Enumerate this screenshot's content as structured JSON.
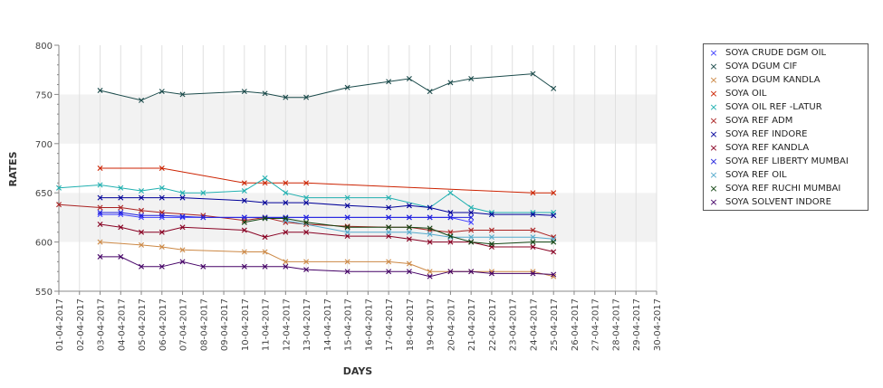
{
  "chart_data": {
    "type": "line",
    "title": "",
    "xlabel": "DAYS",
    "ylabel": "RATES",
    "ylim": [
      550,
      800
    ],
    "yticks": [
      550,
      600,
      650,
      700,
      750,
      800
    ],
    "grid": true,
    "legend_position": "right",
    "x": [
      "01-04-2017",
      "02-04-2017",
      "03-04-2017",
      "04-04-2017",
      "05-04-2017",
      "06-04-2017",
      "07-04-2017",
      "08-04-2017",
      "09-04-2017",
      "10-04-2017",
      "11-04-2017",
      "12-04-2017",
      "13-04-2017",
      "14-04-2017",
      "15-04-2017",
      "16-04-2017",
      "17-04-2017",
      "18-04-2017",
      "19-04-2017",
      "20-04-2017",
      "21-04-2017",
      "22-04-2017",
      "23-04-2017",
      "24-04-2017",
      "25-04-2017",
      "26-04-2017",
      "27-04-2017",
      "28-04-2017",
      "29-04-2017",
      "30-04-2017"
    ],
    "series": [
      {
        "name": "SOYA CRUDE DGM OIL",
        "color": "#4040ff",
        "points": [
          [
            "03-04-2017",
            628
          ],
          [
            "04-04-2017",
            628
          ],
          [
            "05-04-2017",
            625
          ],
          [
            "06-04-2017",
            625
          ],
          [
            "07-04-2017",
            625
          ],
          [
            "08-04-2017",
            625
          ],
          [
            "10-04-2017",
            625
          ],
          [
            "11-04-2017",
            625
          ],
          [
            "12-04-2017",
            625
          ],
          [
            "13-04-2017",
            625
          ],
          [
            "15-04-2017",
            625
          ],
          [
            "17-04-2017",
            625
          ],
          [
            "18-04-2017",
            625
          ],
          [
            "19-04-2017",
            625
          ],
          [
            "20-04-2017",
            625
          ],
          [
            "21-04-2017",
            620
          ]
        ]
      },
      {
        "name": "SOYA DGUM CIF",
        "color": "#1a4a4a",
        "points": [
          [
            "03-04-2017",
            754
          ],
          [
            "05-04-2017",
            744
          ],
          [
            "06-04-2017",
            753
          ],
          [
            "07-04-2017",
            750
          ],
          [
            "10-04-2017",
            753
          ],
          [
            "11-04-2017",
            751
          ],
          [
            "12-04-2017",
            747
          ],
          [
            "13-04-2017",
            747
          ],
          [
            "15-04-2017",
            757
          ],
          [
            "17-04-2017",
            763
          ],
          [
            "18-04-2017",
            766
          ],
          [
            "19-04-2017",
            753
          ],
          [
            "20-04-2017",
            762
          ],
          [
            "21-04-2017",
            766
          ],
          [
            "24-04-2017",
            771
          ],
          [
            "25-04-2017",
            756
          ]
        ]
      },
      {
        "name": "SOYA DGUM KANDLA",
        "color": "#cc8844",
        "points": [
          [
            "03-04-2017",
            600
          ],
          [
            "05-04-2017",
            597
          ],
          [
            "06-04-2017",
            595
          ],
          [
            "07-04-2017",
            592
          ],
          [
            "10-04-2017",
            590
          ],
          [
            "11-04-2017",
            590
          ],
          [
            "12-04-2017",
            580
          ],
          [
            "13-04-2017",
            580
          ],
          [
            "15-04-2017",
            580
          ],
          [
            "17-04-2017",
            580
          ],
          [
            "18-04-2017",
            578
          ],
          [
            "19-04-2017",
            570
          ],
          [
            "20-04-2017",
            570
          ],
          [
            "21-04-2017",
            570
          ],
          [
            "22-04-2017",
            570
          ],
          [
            "24-04-2017",
            570
          ],
          [
            "25-04-2017",
            565
          ]
        ]
      },
      {
        "name": "SOYA OIL",
        "color": "#cc2200",
        "points": [
          [
            "03-04-2017",
            675
          ],
          [
            "06-04-2017",
            675
          ],
          [
            "10-04-2017",
            660
          ],
          [
            "11-04-2017",
            660
          ],
          [
            "12-04-2017",
            660
          ],
          [
            "13-04-2017",
            660
          ],
          [
            "24-04-2017",
            650
          ],
          [
            "25-04-2017",
            650
          ]
        ]
      },
      {
        "name": "SOYA OIL REF -LATUR",
        "color": "#20b0b0",
        "points": [
          [
            "01-04-2017",
            655
          ],
          [
            "03-04-2017",
            658
          ],
          [
            "04-04-2017",
            655
          ],
          [
            "05-04-2017",
            652
          ],
          [
            "06-04-2017",
            655
          ],
          [
            "07-04-2017",
            650
          ],
          [
            "08-04-2017",
            650
          ],
          [
            "10-04-2017",
            652
          ],
          [
            "11-04-2017",
            665
          ],
          [
            "12-04-2017",
            650
          ],
          [
            "13-04-2017",
            645
          ],
          [
            "15-04-2017",
            645
          ],
          [
            "17-04-2017",
            645
          ],
          [
            "19-04-2017",
            635
          ],
          [
            "20-04-2017",
            650
          ],
          [
            "21-04-2017",
            635
          ],
          [
            "22-04-2017",
            630
          ],
          [
            "24-04-2017",
            630
          ],
          [
            "25-04-2017",
            630
          ]
        ]
      },
      {
        "name": "SOYA REF ADM",
        "color": "#aa2222",
        "points": [
          [
            "01-04-2017",
            638
          ],
          [
            "03-04-2017",
            635
          ],
          [
            "04-04-2017",
            635
          ],
          [
            "05-04-2017",
            632
          ],
          [
            "06-04-2017",
            630
          ],
          [
            "08-04-2017",
            627
          ],
          [
            "10-04-2017",
            622
          ],
          [
            "11-04-2017",
            625
          ],
          [
            "12-04-2017",
            620
          ],
          [
            "13-04-2017",
            618
          ],
          [
            "15-04-2017",
            616
          ],
          [
            "17-04-2017",
            615
          ],
          [
            "18-04-2017",
            615
          ],
          [
            "19-04-2017",
            612
          ],
          [
            "20-04-2017",
            610
          ],
          [
            "21-04-2017",
            612
          ],
          [
            "22-04-2017",
            612
          ],
          [
            "24-04-2017",
            612
          ],
          [
            "25-04-2017",
            605
          ]
        ]
      },
      {
        "name": "SOYA REF INDORE",
        "color": "#000099",
        "points": [
          [
            "03-04-2017",
            645
          ],
          [
            "04-04-2017",
            645
          ],
          [
            "05-04-2017",
            645
          ],
          [
            "06-04-2017",
            645
          ],
          [
            "07-04-2017",
            645
          ],
          [
            "10-04-2017",
            642
          ],
          [
            "11-04-2017",
            640
          ],
          [
            "12-04-2017",
            640
          ],
          [
            "13-04-2017",
            640
          ],
          [
            "15-04-2017",
            637
          ],
          [
            "17-04-2017",
            635
          ],
          [
            "18-04-2017",
            637
          ],
          [
            "19-04-2017",
            635
          ],
          [
            "20-04-2017",
            630
          ],
          [
            "21-04-2017",
            630
          ],
          [
            "22-04-2017",
            628
          ],
          [
            "24-04-2017",
            628
          ],
          [
            "25-04-2017",
            627
          ]
        ]
      },
      {
        "name": "SOYA REF KANDLA",
        "color": "#880022",
        "points": [
          [
            "03-04-2017",
            618
          ],
          [
            "04-04-2017",
            615
          ],
          [
            "05-04-2017",
            610
          ],
          [
            "06-04-2017",
            610
          ],
          [
            "07-04-2017",
            615
          ],
          [
            "10-04-2017",
            612
          ],
          [
            "11-04-2017",
            605
          ],
          [
            "12-04-2017",
            610
          ],
          [
            "13-04-2017",
            610
          ],
          [
            "15-04-2017",
            606
          ],
          [
            "17-04-2017",
            606
          ],
          [
            "18-04-2017",
            603
          ],
          [
            "19-04-2017",
            600
          ],
          [
            "20-04-2017",
            600
          ],
          [
            "21-04-2017",
            600
          ],
          [
            "22-04-2017",
            595
          ],
          [
            "24-04-2017",
            595
          ],
          [
            "25-04-2017",
            590
          ]
        ]
      },
      {
        "name": "SOYA REF LIBERTY MUMBAI",
        "color": "#2222dd",
        "points": [
          [
            "03-04-2017",
            630
          ],
          [
            "04-04-2017",
            630
          ],
          [
            "05-04-2017",
            627
          ],
          [
            "06-04-2017",
            627
          ],
          [
            "07-04-2017",
            626
          ],
          [
            "08-04-2017",
            625
          ],
          [
            "10-04-2017",
            625
          ],
          [
            "11-04-2017",
            625
          ],
          [
            "12-04-2017",
            625
          ],
          [
            "13-04-2017",
            625
          ],
          [
            "15-04-2017",
            625
          ],
          [
            "17-04-2017",
            625
          ],
          [
            "18-04-2017",
            625
          ],
          [
            "19-04-2017",
            625
          ],
          [
            "20-04-2017",
            625
          ],
          [
            "21-04-2017",
            625
          ]
        ]
      },
      {
        "name": "SOYA REF OIL",
        "color": "#55aacc",
        "points": [
          [
            "12-04-2017",
            622
          ],
          [
            "15-04-2017",
            610
          ],
          [
            "17-04-2017",
            610
          ],
          [
            "18-04-2017",
            610
          ],
          [
            "19-04-2017",
            608
          ],
          [
            "20-04-2017",
            605
          ],
          [
            "21-04-2017",
            605
          ],
          [
            "22-04-2017",
            605
          ],
          [
            "24-04-2017",
            605
          ],
          [
            "25-04-2017",
            603
          ]
        ]
      },
      {
        "name": "SOYA REF RUCHI MUMBAI",
        "color": "#114411",
        "points": [
          [
            "10-04-2017",
            620
          ],
          [
            "11-04-2017",
            624
          ],
          [
            "12-04-2017",
            624
          ],
          [
            "13-04-2017",
            620
          ],
          [
            "15-04-2017",
            615
          ],
          [
            "17-04-2017",
            615
          ],
          [
            "18-04-2017",
            615
          ],
          [
            "19-04-2017",
            614
          ],
          [
            "20-04-2017",
            606
          ],
          [
            "21-04-2017",
            600
          ],
          [
            "22-04-2017",
            598
          ],
          [
            "24-04-2017",
            600
          ],
          [
            "25-04-2017",
            600
          ]
        ]
      },
      {
        "name": "SOYA SOLVENT INDORE",
        "color": "#440066",
        "points": [
          [
            "03-04-2017",
            585
          ],
          [
            "04-04-2017",
            585
          ],
          [
            "05-04-2017",
            575
          ],
          [
            "06-04-2017",
            575
          ],
          [
            "07-04-2017",
            580
          ],
          [
            "08-04-2017",
            575
          ],
          [
            "10-04-2017",
            575
          ],
          [
            "11-04-2017",
            575
          ],
          [
            "12-04-2017",
            575
          ],
          [
            "13-04-2017",
            572
          ],
          [
            "15-04-2017",
            570
          ],
          [
            "17-04-2017",
            570
          ],
          [
            "18-04-2017",
            570
          ],
          [
            "19-04-2017",
            565
          ],
          [
            "20-04-2017",
            570
          ],
          [
            "21-04-2017",
            570
          ],
          [
            "22-04-2017",
            568
          ],
          [
            "24-04-2017",
            568
          ],
          [
            "25-04-2017",
            567
          ]
        ]
      }
    ]
  }
}
